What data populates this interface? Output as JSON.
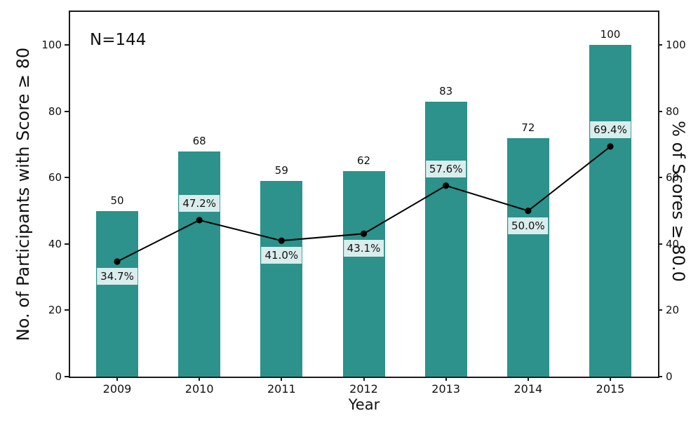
{
  "chart_data": {
    "type": "bar",
    "subtype": "bar-with-line-overlay",
    "title": "",
    "xlabel": "Year",
    "ylabel_left": "No. of Participants with Score ≥ 80",
    "ylabel_right": "% of Scores ≥ 80.0",
    "annotation": "N=144",
    "categories": [
      "2009",
      "2010",
      "2011",
      "2012",
      "2013",
      "2014",
      "2015"
    ],
    "series": [
      {
        "name": "No. of Participants with Score ≥ 80",
        "type": "bar",
        "axis": "left",
        "values": [
          50,
          68,
          59,
          62,
          83,
          72,
          100
        ],
        "value_labels": [
          "50",
          "68",
          "59",
          "62",
          "83",
          "72",
          "100"
        ]
      },
      {
        "name": "% of Scores ≥ 80.0",
        "type": "line",
        "axis": "right",
        "values": [
          34.7,
          47.2,
          41.0,
          43.1,
          57.6,
          50.0,
          69.4
        ],
        "point_labels": [
          "34.7%",
          "47.2%",
          "41.0%",
          "43.1%",
          "57.6%",
          "50.0%",
          "69.4%"
        ],
        "label_placement": [
          "below",
          "above",
          "below",
          "below",
          "above",
          "below",
          "above"
        ]
      }
    ],
    "yticks_left": [
      0,
      20,
      40,
      60,
      80,
      100
    ],
    "yticks_right": [
      0,
      20,
      40,
      60,
      80,
      100
    ],
    "ylim": [
      0,
      110
    ],
    "grid": false,
    "legend": "none",
    "colors": {
      "bar": "#2c928b",
      "line": "#000000",
      "marker": "#000000",
      "label_box": "#d9edec",
      "spine": "#1a1a1a",
      "background": "#ffffff",
      "text": "#111111"
    }
  }
}
